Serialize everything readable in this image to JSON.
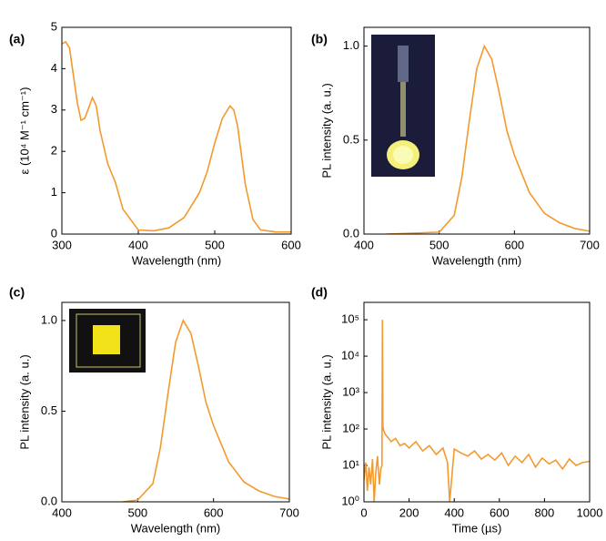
{
  "chart_data": [
    {
      "type": "line",
      "panel": "(a)",
      "xlabel": "Wavelength (nm)",
      "ylabel": "ε (10⁴ M⁻¹ cm⁻¹)",
      "color": "#f39a2e",
      "xlim": [
        300,
        600
      ],
      "xticks": [
        300,
        400,
        500,
        600
      ],
      "ylim": [
        0,
        5
      ],
      "yticks": [
        0,
        1,
        2,
        3,
        4,
        5
      ],
      "x": [
        300,
        305,
        310,
        320,
        325,
        330,
        340,
        345,
        350,
        360,
        370,
        380,
        390,
        400,
        420,
        440,
        460,
        480,
        490,
        500,
        510,
        520,
        525,
        530,
        540,
        550,
        560,
        580,
        600
      ],
      "values": [
        4.6,
        4.65,
        4.5,
        3.2,
        2.75,
        2.8,
        3.3,
        3.1,
        2.5,
        1.7,
        1.25,
        0.6,
        0.35,
        0.1,
        0.08,
        0.15,
        0.4,
        1.0,
        1.5,
        2.2,
        2.8,
        3.1,
        3.0,
        2.6,
        1.2,
        0.35,
        0.1,
        0.05,
        0.05
      ]
    },
    {
      "type": "line",
      "panel": "(b)",
      "xlabel": "Wavelength (nm)",
      "ylabel": "PL intensity (a. u.)",
      "color": "#f39a2e",
      "xlim": [
        400,
        700
      ],
      "xticks": [
        400,
        500,
        600,
        700
      ],
      "ylim": [
        0,
        1.1
      ],
      "yticks": [
        {
          "value": 0,
          "label": "0.0"
        },
        0.5,
        {
          "value": 1,
          "label": "1.0"
        }
      ],
      "x": [
        430,
        500,
        520,
        530,
        540,
        550,
        560,
        570,
        580,
        590,
        600,
        620,
        640,
        660,
        680,
        700
      ],
      "values": [
        0,
        0.01,
        0.1,
        0.3,
        0.6,
        0.88,
        1.0,
        0.93,
        0.75,
        0.55,
        0.42,
        0.22,
        0.11,
        0.06,
        0.03,
        0.015
      ]
    },
    {
      "type": "line",
      "panel": "(c)",
      "xlabel": "Wavelength (nm)",
      "ylabel": "PL intensity (a. u.)",
      "color": "#f39a2e",
      "xlim": [
        400,
        700
      ],
      "xticks": [
        400,
        500,
        600,
        700
      ],
      "ylim": [
        0,
        1.1
      ],
      "yticks": [
        {
          "value": 0,
          "label": "0.0"
        },
        0.5,
        {
          "value": 1,
          "label": "1.0"
        }
      ],
      "x": [
        480,
        500,
        520,
        530,
        540,
        550,
        560,
        570,
        580,
        590,
        600,
        620,
        640,
        660,
        680,
        700
      ],
      "values": [
        0,
        0.01,
        0.1,
        0.3,
        0.6,
        0.88,
        1.0,
        0.93,
        0.75,
        0.55,
        0.42,
        0.22,
        0.11,
        0.06,
        0.03,
        0.015
      ]
    },
    {
      "type": "line",
      "panel": "(d)",
      "xlabel": "Time (µs)",
      "ylabel": "PL intensity (a. u.)",
      "color": "#f39a2e",
      "log_y": true,
      "xlim": [
        0,
        1000
      ],
      "xticks": [
        0,
        200,
        400,
        600,
        800,
        1000
      ],
      "ylim": [
        1,
        300000
      ],
      "yticks": [
        {
          "value": 1,
          "label": "10⁰"
        },
        {
          "value": 10,
          "label": "10¹"
        },
        {
          "value": 100,
          "label": "10²"
        },
        {
          "value": 1000,
          "label": "10³"
        },
        {
          "value": 10000,
          "label": "10⁴"
        },
        {
          "value": 100000,
          "label": "10⁵"
        }
      ],
      "x": [
        0,
        8,
        15,
        22,
        30,
        38,
        45,
        52,
        60,
        68,
        75,
        80,
        82,
        84,
        88,
        95,
        105,
        120,
        140,
        160,
        180,
        200,
        230,
        260,
        290,
        320,
        350,
        370,
        380,
        400,
        430,
        460,
        490,
        520,
        550,
        580,
        610,
        640,
        670,
        700,
        730,
        760,
        790,
        820,
        850,
        880,
        910,
        940,
        970,
        1000
      ],
      "values": [
        4,
        12,
        2,
        9,
        3,
        15,
        1,
        6,
        18,
        3,
        8,
        10,
        100000,
        120,
        90,
        70,
        60,
        45,
        55,
        35,
        40,
        30,
        45,
        25,
        35,
        20,
        30,
        12,
        1,
        28,
        22,
        18,
        25,
        15,
        20,
        14,
        22,
        10,
        18,
        12,
        20,
        9,
        16,
        11,
        14,
        8,
        15,
        10,
        12,
        13
      ]
    }
  ]
}
